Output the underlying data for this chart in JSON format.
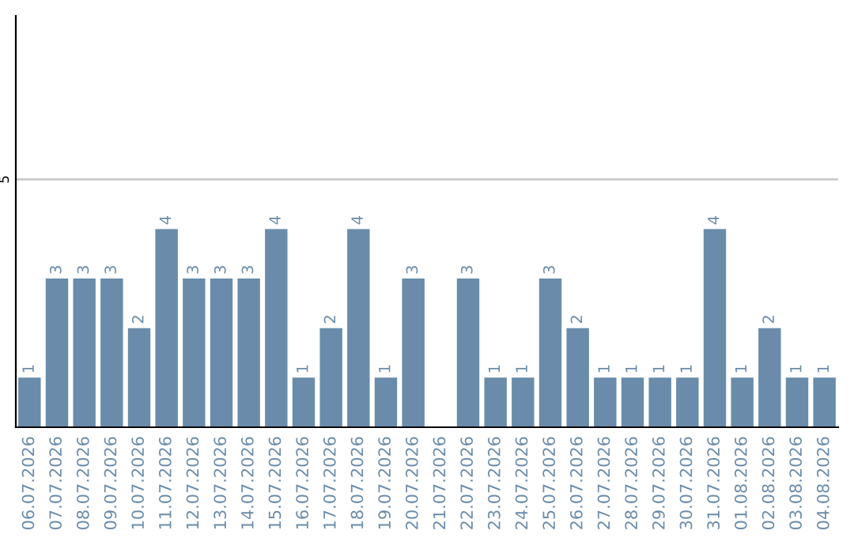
{
  "chart_data": {
    "type": "bar",
    "categories": [
      "06.07.2026",
      "07.07.2026",
      "08.07.2026",
      "09.07.2026",
      "10.07.2026",
      "11.07.2026",
      "12.07.2026",
      "13.07.2026",
      "14.07.2026",
      "15.07.2026",
      "16.07.2026",
      "17.07.2026",
      "18.07.2026",
      "19.07.2026",
      "20.07.2026",
      "21.07.2026",
      "22.07.2026",
      "23.07.2026",
      "24.07.2026",
      "25.07.2026",
      "26.07.2026",
      "27.07.2026",
      "28.07.2026",
      "29.07.2026",
      "30.07.2026",
      "31.07.2026",
      "01.08.2026",
      "02.08.2026",
      "03.08.2026",
      "04.08.2026"
    ],
    "values": [
      1,
      3,
      3,
      3,
      2,
      4,
      3,
      3,
      3,
      4,
      1,
      2,
      4,
      1,
      3,
      null,
      3,
      1,
      1,
      3,
      2,
      1,
      1,
      1,
      1,
      4,
      1,
      2,
      1,
      1
    ],
    "color": "#6a8caa",
    "ylim": [
      0,
      8.3
    ],
    "yticks": [
      5
    ],
    "grid": "y",
    "data_labels": true
  }
}
